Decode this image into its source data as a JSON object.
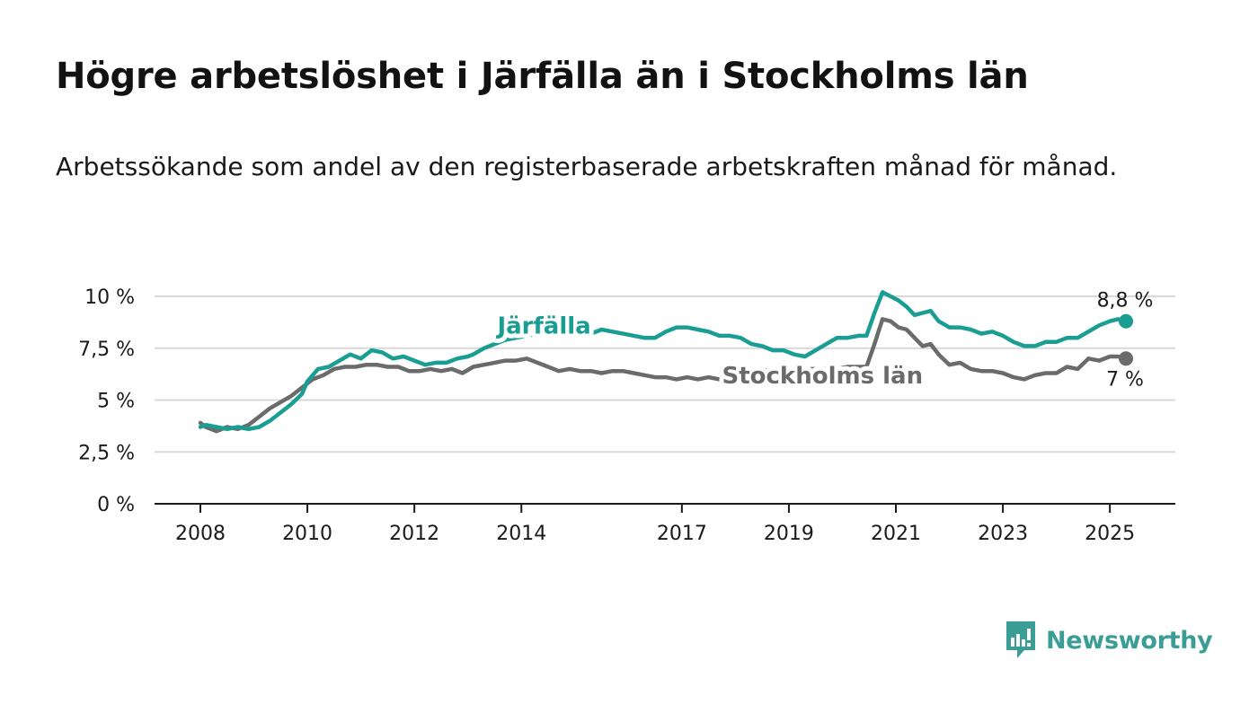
{
  "header": {
    "title": "Högre arbetslöshet i Järfälla än i Stockholms län",
    "subtitle": "Arbetssökande som andel av den registerbaserade arbetskraften månad för månad."
  },
  "brand": {
    "name": "Newsworthy",
    "color": "#3a9e96"
  },
  "chart_data": {
    "type": "line",
    "title": "Högre arbetslöshet i Järfälla än i Stockholms län",
    "subtitle": "Arbetssökande som andel av den registerbaserade arbetskraften månad för månad.",
    "xlabel": "",
    "ylabel": "",
    "xlim": [
      2008.0,
      2025.35
    ],
    "ylim": [
      0,
      10
    ],
    "grid": true,
    "x_ticks": [
      {
        "value": 2008,
        "label": "2008"
      },
      {
        "value": 2010,
        "label": "2010"
      },
      {
        "value": 2012,
        "label": "2012"
      },
      {
        "value": 2014,
        "label": "2014"
      },
      {
        "value": 2017,
        "label": "2017"
      },
      {
        "value": 2019,
        "label": "2019"
      },
      {
        "value": 2021,
        "label": "2021"
      },
      {
        "value": 2023,
        "label": "2023"
      },
      {
        "value": 2025,
        "label": "2025"
      }
    ],
    "y_ticks": [
      {
        "value": 0,
        "label": "0 %"
      },
      {
        "value": 2.5,
        "label": "2,5 %"
      },
      {
        "value": 5,
        "label": "5 %"
      },
      {
        "value": 7.5,
        "label": "7,5 %"
      },
      {
        "value": 10,
        "label": "10 %"
      }
    ],
    "series": [
      {
        "name": "Järfälla",
        "color": "#1a9e93",
        "end_label": "8,8 %",
        "points": [
          [
            2008.0,
            3.7
          ],
          [
            2008.1,
            3.8
          ],
          [
            2008.3,
            3.7
          ],
          [
            2008.5,
            3.6
          ],
          [
            2008.7,
            3.7
          ],
          [
            2008.9,
            3.6
          ],
          [
            2009.1,
            3.7
          ],
          [
            2009.3,
            4.0
          ],
          [
            2009.5,
            4.4
          ],
          [
            2009.7,
            4.8
          ],
          [
            2009.9,
            5.3
          ],
          [
            2010.0,
            5.9
          ],
          [
            2010.2,
            6.5
          ],
          [
            2010.4,
            6.6
          ],
          [
            2010.6,
            6.9
          ],
          [
            2010.8,
            7.2
          ],
          [
            2011.0,
            7.0
          ],
          [
            2011.2,
            7.4
          ],
          [
            2011.4,
            7.3
          ],
          [
            2011.6,
            7.0
          ],
          [
            2011.8,
            7.1
          ],
          [
            2012.0,
            6.9
          ],
          [
            2012.2,
            6.7
          ],
          [
            2012.4,
            6.8
          ],
          [
            2012.6,
            6.8
          ],
          [
            2012.8,
            7.0
          ],
          [
            2013.0,
            7.1
          ],
          [
            2013.1,
            7.2
          ],
          [
            2013.3,
            7.5
          ],
          [
            2013.5,
            7.7
          ],
          [
            2013.7,
            7.9
          ],
          [
            2013.9,
            8.0
          ],
          [
            2014.1,
            8.1
          ],
          [
            2014.3,
            8.2
          ],
          [
            2014.5,
            8.3
          ],
          [
            2014.7,
            8.3
          ],
          [
            2014.9,
            8.3
          ],
          [
            2015.1,
            8.3
          ],
          [
            2015.3,
            8.2
          ],
          [
            2015.5,
            8.4
          ],
          [
            2015.7,
            8.3
          ],
          [
            2015.9,
            8.2
          ],
          [
            2016.1,
            8.1
          ],
          [
            2016.3,
            8.0
          ],
          [
            2016.5,
            8.0
          ],
          [
            2016.7,
            8.3
          ],
          [
            2016.9,
            8.5
          ],
          [
            2017.1,
            8.5
          ],
          [
            2017.3,
            8.4
          ],
          [
            2017.5,
            8.3
          ],
          [
            2017.7,
            8.1
          ],
          [
            2017.9,
            8.1
          ],
          [
            2018.1,
            8.0
          ],
          [
            2018.3,
            7.7
          ],
          [
            2018.5,
            7.6
          ],
          [
            2018.7,
            7.4
          ],
          [
            2018.9,
            7.4
          ],
          [
            2019.1,
            7.2
          ],
          [
            2019.3,
            7.1
          ],
          [
            2019.5,
            7.4
          ],
          [
            2019.7,
            7.7
          ],
          [
            2019.9,
            8.0
          ],
          [
            2020.1,
            8.0
          ],
          [
            2020.3,
            8.1
          ],
          [
            2020.45,
            8.1
          ],
          [
            2020.6,
            9.2
          ],
          [
            2020.75,
            10.2
          ],
          [
            2020.9,
            10.0
          ],
          [
            2021.05,
            9.8
          ],
          [
            2021.2,
            9.5
          ],
          [
            2021.35,
            9.1
          ],
          [
            2021.5,
            9.2
          ],
          [
            2021.65,
            9.3
          ],
          [
            2021.8,
            8.8
          ],
          [
            2022.0,
            8.5
          ],
          [
            2022.2,
            8.5
          ],
          [
            2022.4,
            8.4
          ],
          [
            2022.6,
            8.2
          ],
          [
            2022.8,
            8.3
          ],
          [
            2023.0,
            8.1
          ],
          [
            2023.2,
            7.8
          ],
          [
            2023.4,
            7.6
          ],
          [
            2023.6,
            7.6
          ],
          [
            2023.8,
            7.8
          ],
          [
            2024.0,
            7.8
          ],
          [
            2024.2,
            8.0
          ],
          [
            2024.4,
            8.0
          ],
          [
            2024.6,
            8.3
          ],
          [
            2024.8,
            8.6
          ],
          [
            2025.0,
            8.8
          ],
          [
            2025.15,
            8.9
          ],
          [
            2025.3,
            8.8
          ]
        ]
      },
      {
        "name": "Stockholms län",
        "color": "#6b6b6b",
        "end_label": "7 %",
        "points": [
          [
            2008.0,
            3.9
          ],
          [
            2008.1,
            3.7
          ],
          [
            2008.3,
            3.5
          ],
          [
            2008.5,
            3.7
          ],
          [
            2008.7,
            3.6
          ],
          [
            2008.9,
            3.8
          ],
          [
            2009.1,
            4.2
          ],
          [
            2009.3,
            4.6
          ],
          [
            2009.5,
            4.9
          ],
          [
            2009.7,
            5.2
          ],
          [
            2009.9,
            5.6
          ],
          [
            2010.1,
            6.0
          ],
          [
            2010.3,
            6.2
          ],
          [
            2010.5,
            6.5
          ],
          [
            2010.7,
            6.6
          ],
          [
            2010.9,
            6.6
          ],
          [
            2011.1,
            6.7
          ],
          [
            2011.3,
            6.7
          ],
          [
            2011.5,
            6.6
          ],
          [
            2011.7,
            6.6
          ],
          [
            2011.9,
            6.4
          ],
          [
            2012.1,
            6.4
          ],
          [
            2012.3,
            6.5
          ],
          [
            2012.5,
            6.4
          ],
          [
            2012.7,
            6.5
          ],
          [
            2012.9,
            6.3
          ],
          [
            2013.1,
            6.6
          ],
          [
            2013.3,
            6.7
          ],
          [
            2013.5,
            6.8
          ],
          [
            2013.7,
            6.9
          ],
          [
            2013.9,
            6.9
          ],
          [
            2014.1,
            7.0
          ],
          [
            2014.3,
            6.8
          ],
          [
            2014.5,
            6.6
          ],
          [
            2014.7,
            6.4
          ],
          [
            2014.9,
            6.5
          ],
          [
            2015.1,
            6.4
          ],
          [
            2015.3,
            6.4
          ],
          [
            2015.5,
            6.3
          ],
          [
            2015.7,
            6.4
          ],
          [
            2015.9,
            6.4
          ],
          [
            2016.1,
            6.3
          ],
          [
            2016.3,
            6.2
          ],
          [
            2016.5,
            6.1
          ],
          [
            2016.7,
            6.1
          ],
          [
            2016.9,
            6.0
          ],
          [
            2017.1,
            6.1
          ],
          [
            2017.3,
            6.0
          ],
          [
            2017.5,
            6.1
          ],
          [
            2017.7,
            6.0
          ],
          [
            2017.9,
            6.1
          ],
          [
            2018.1,
            6.2
          ],
          [
            2018.3,
            6.3
          ],
          [
            2018.5,
            6.4
          ],
          [
            2018.7,
            6.5
          ],
          [
            2018.9,
            6.5
          ],
          [
            2019.1,
            6.4
          ],
          [
            2019.3,
            6.5
          ],
          [
            2019.5,
            6.5
          ],
          [
            2019.7,
            6.5
          ],
          [
            2019.9,
            6.5
          ],
          [
            2020.1,
            6.6
          ],
          [
            2020.3,
            6.6
          ],
          [
            2020.45,
            6.6
          ],
          [
            2020.6,
            7.7
          ],
          [
            2020.75,
            8.9
          ],
          [
            2020.9,
            8.8
          ],
          [
            2021.05,
            8.5
          ],
          [
            2021.2,
            8.4
          ],
          [
            2021.35,
            8.0
          ],
          [
            2021.5,
            7.6
          ],
          [
            2021.65,
            7.7
          ],
          [
            2021.8,
            7.2
          ],
          [
            2022.0,
            6.7
          ],
          [
            2022.2,
            6.8
          ],
          [
            2022.4,
            6.5
          ],
          [
            2022.6,
            6.4
          ],
          [
            2022.8,
            6.4
          ],
          [
            2023.0,
            6.3
          ],
          [
            2023.2,
            6.1
          ],
          [
            2023.4,
            6.0
          ],
          [
            2023.6,
            6.2
          ],
          [
            2023.8,
            6.3
          ],
          [
            2024.0,
            6.3
          ],
          [
            2024.2,
            6.6
          ],
          [
            2024.4,
            6.5
          ],
          [
            2024.6,
            7.0
          ],
          [
            2024.8,
            6.9
          ],
          [
            2025.0,
            7.1
          ],
          [
            2025.15,
            7.1
          ],
          [
            2025.3,
            7.0
          ]
        ]
      }
    ]
  }
}
